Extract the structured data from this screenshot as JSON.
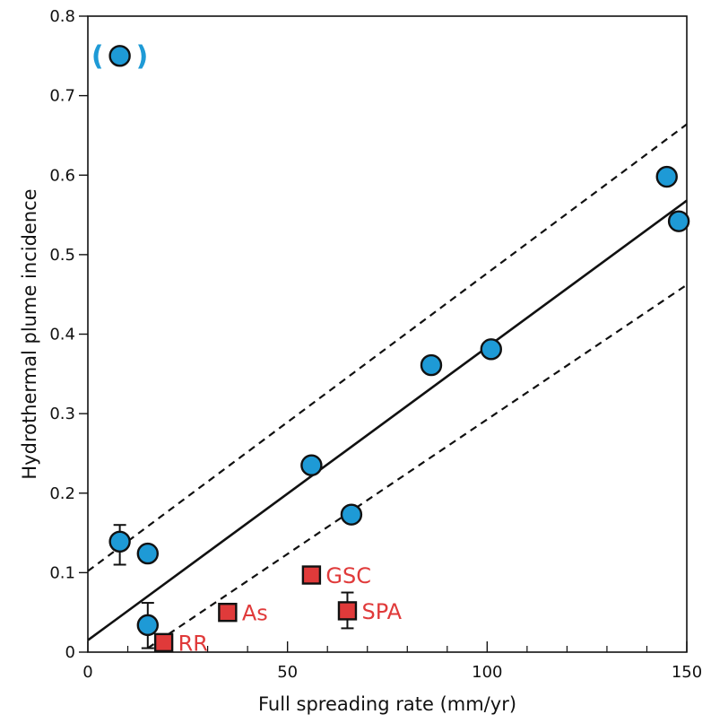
{
  "chart_data": {
    "type": "scatter",
    "title": "",
    "xlabel": "Full spreading rate (mm/yr)",
    "ylabel": "Hydrothermal plume incidence",
    "xlim": [
      0,
      150
    ],
    "ylim": [
      0,
      0.8
    ],
    "x_ticks": [
      0,
      50,
      100,
      150
    ],
    "x_minor_ticks": [
      10,
      20,
      30,
      40,
      60,
      70,
      80,
      90,
      110,
      120,
      130,
      140
    ],
    "y_ticks": [
      0,
      0.1,
      0.2,
      0.3,
      0.4,
      0.5,
      0.6,
      0.7,
      0.8
    ],
    "grid": false,
    "colors": {
      "circles": "#1e9ad6",
      "squares": "#e03a3a",
      "lines": "#111111"
    },
    "series": [
      {
        "marker": "circle",
        "points": [
          {
            "x": 8,
            "y": 0.75,
            "parenthesized": true,
            "paren_text": [
              "(",
              ")"
            ]
          },
          {
            "x": 8,
            "y": 0.139,
            "err": [
              0.11,
              0.16
            ]
          },
          {
            "x": 15,
            "y": 0.124
          },
          {
            "x": 15,
            "y": 0.034,
            "err": [
              0.005,
              0.062
            ]
          },
          {
            "x": 56,
            "y": 0.235
          },
          {
            "x": 66,
            "y": 0.173
          },
          {
            "x": 86,
            "y": 0.361
          },
          {
            "x": 101,
            "y": 0.381
          },
          {
            "x": 145,
            "y": 0.598
          },
          {
            "x": 148,
            "y": 0.542
          }
        ]
      },
      {
        "marker": "square",
        "points": [
          {
            "x": 19,
            "y": 0.012,
            "label": "RR"
          },
          {
            "x": 35,
            "y": 0.05,
            "label": "As"
          },
          {
            "x": 56,
            "y": 0.097,
            "label": "GSC"
          },
          {
            "x": 65,
            "y": 0.052,
            "label": "SPA",
            "err": [
              0.03,
              0.075
            ]
          }
        ]
      }
    ],
    "fit_line": {
      "style": "solid",
      "x": [
        0,
        150
      ],
      "y": [
        0.015,
        0.568
      ]
    },
    "confidence_bounds": [
      {
        "style": "dashed",
        "x": [
          0,
          150
        ],
        "y": [
          0.102,
          0.664
        ]
      },
      {
        "style": "dashed",
        "x": [
          15,
          150
        ],
        "y": [
          0.005,
          0.462
        ]
      }
    ]
  }
}
